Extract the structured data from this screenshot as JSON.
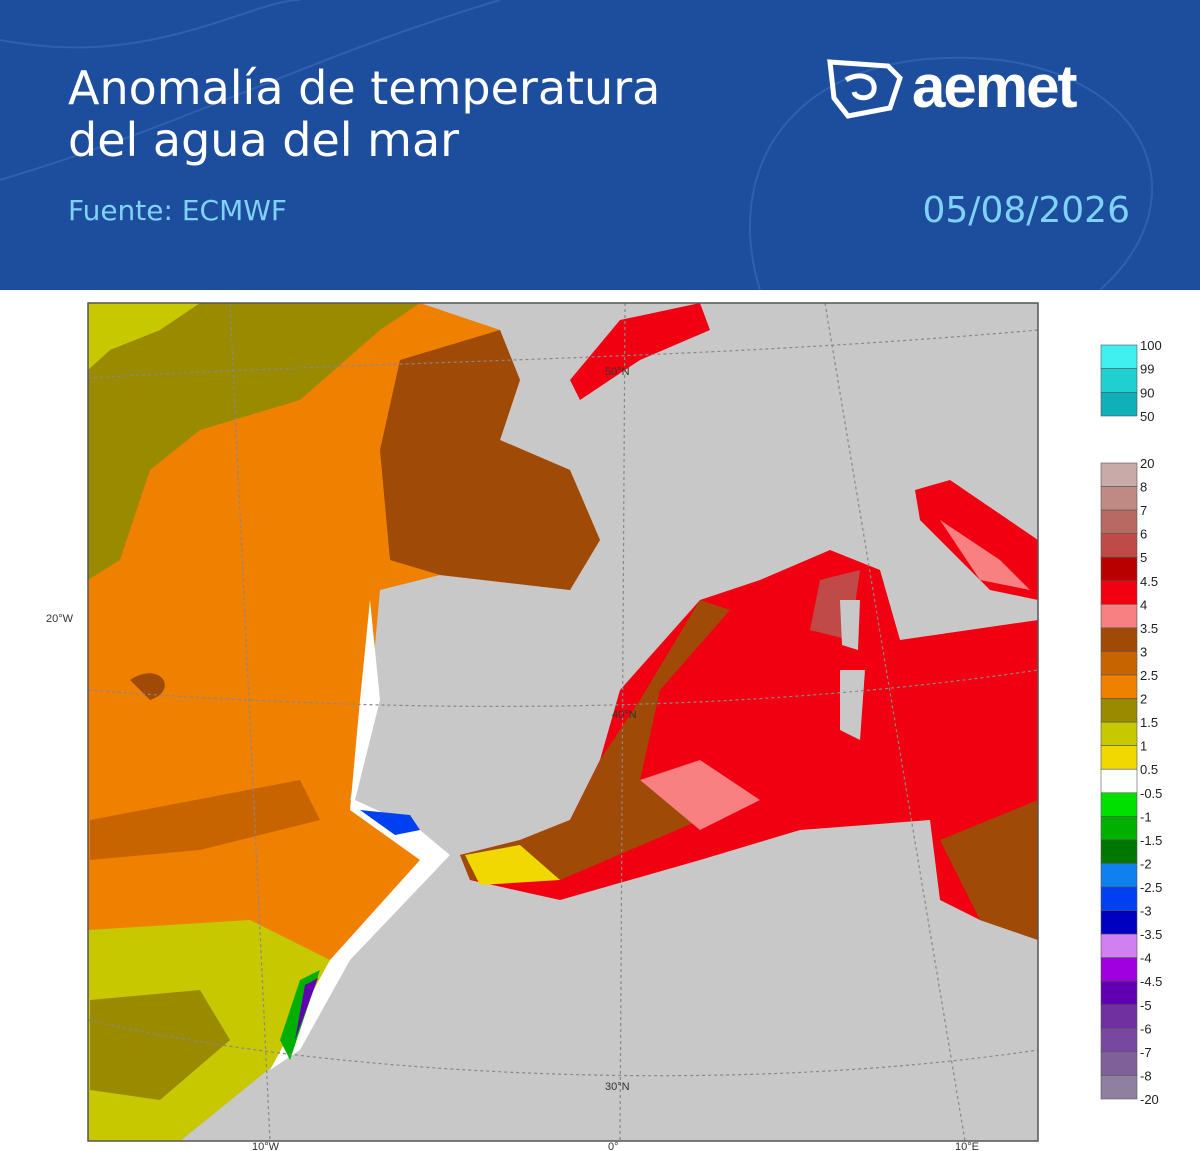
{
  "header": {
    "title_lines": [
      "Anomalía de temperatura",
      "del agua del mar"
    ],
    "source": "Fuente: ECMWF",
    "date": "05/08/2026",
    "logo": "aemet"
  },
  "map": {
    "lat_labels": [
      "50°N",
      "40°N",
      "30°N"
    ],
    "lon_labels": [
      "20°W",
      "10°W",
      "0°",
      "10°E"
    ]
  },
  "legend": {
    "probability": {
      "labels": [
        "100",
        "99",
        "90",
        "50"
      ],
      "colors": [
        "#40f0f0",
        "#20d0d0",
        "#10b0b8"
      ]
    },
    "anomaly": {
      "labels": [
        "20",
        "8",
        "7",
        "6",
        "5",
        "4.5",
        "4",
        "3.5",
        "3",
        "2.5",
        "2",
        "1.5",
        "1",
        "0.5",
        "-0.5",
        "-1",
        "-1.5",
        "-2",
        "-2.5",
        "-3",
        "-3.5",
        "-4",
        "-4.5",
        "-5",
        "-6",
        "-7",
        "-8",
        "-20"
      ],
      "colors": [
        "#c8aaa8",
        "#c08a84",
        "#b86a62",
        "#c04a48",
        "#b80000",
        "#f00010",
        "#f88080",
        "#a04a08",
        "#c86400",
        "#f08000",
        "#9a8a00",
        "#c8c800",
        "#f0d800",
        "#ffffff",
        "#00e000",
        "#00b000",
        "#007800",
        "#1080f0",
        "#0040f0",
        "#0000c0",
        "#d080f0",
        "#a000e0",
        "#6000b0",
        "#7030a0",
        "#7848a0",
        "#806098",
        "#9080a0"
      ]
    }
  }
}
